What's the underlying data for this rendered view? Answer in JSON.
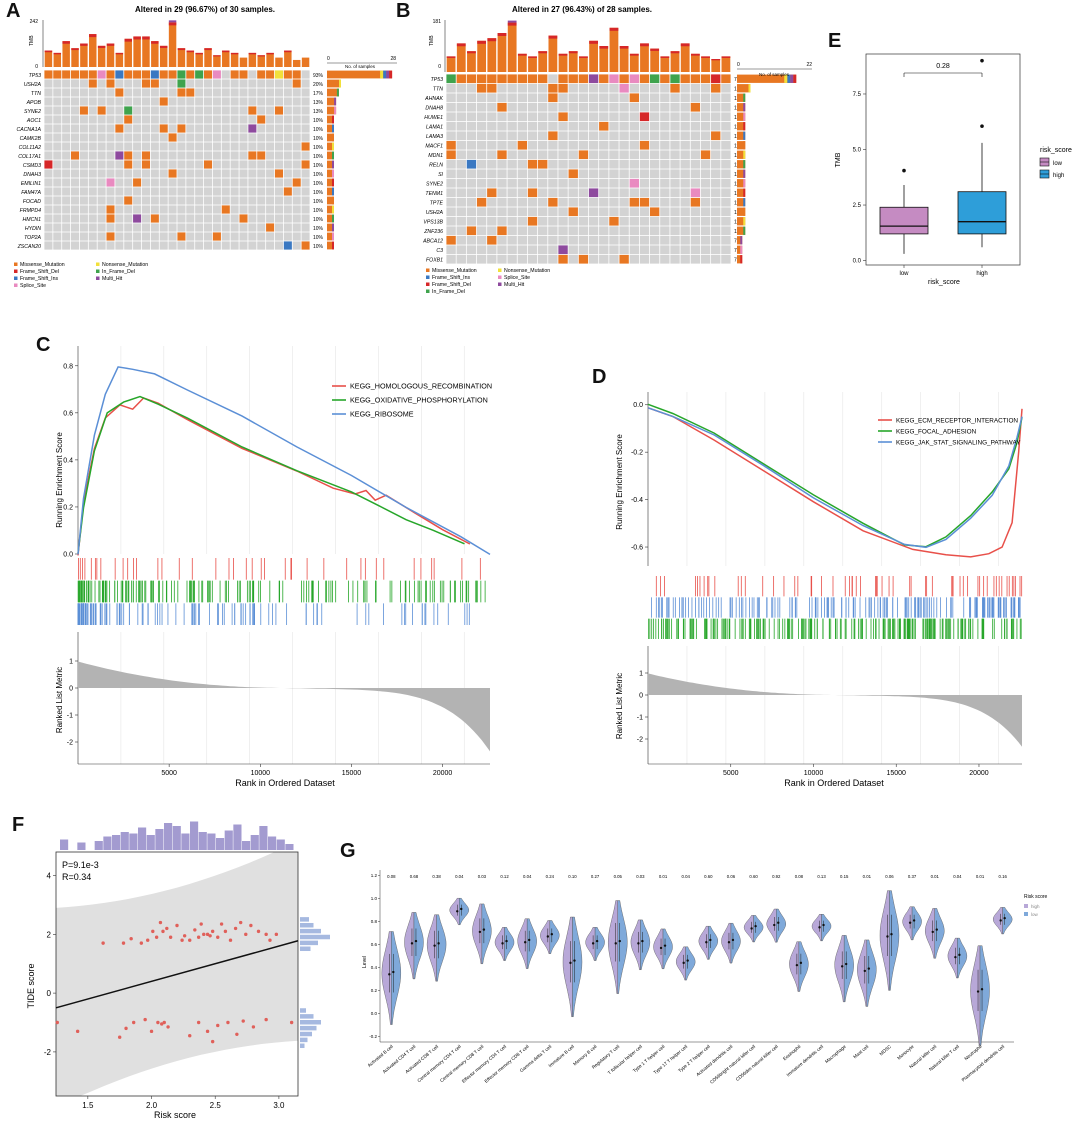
{
  "panels": {
    "A": "A",
    "B": "B",
    "C": "C",
    "D": "D",
    "E": "E",
    "F": "F",
    "G": "G"
  },
  "colors": {
    "missense": "#E87722",
    "nonsense": "#F2E03A",
    "frameshift_del": "#D62728",
    "inframe_del": "#3FA34D",
    "frameshift_ins": "#3A78C2",
    "multi_hit": "#8E4A9E",
    "splice_site": "#E98AC0",
    "empty": "#D3D3D3",
    "red": "#E8504A",
    "green": "#27A62A",
    "blue": "#5B8FD6",
    "low": "#C58BC2",
    "high": "#2E9ED9"
  },
  "chart_data": [
    {
      "id": "A",
      "type": "heatmap",
      "title": "Altered in 29 (96.67%) of 30 samples.",
      "tmb_axis": {
        "label": "TMB",
        "max": "242",
        "min": "0"
      },
      "samples_axis": {
        "label": "No. of samples",
        "min": "0",
        "max": "28"
      },
      "genes": [
        "TP53",
        "USH2A",
        "TTN",
        "APOB",
        "SYNE2",
        "AOC1",
        "CACNA1A",
        "CAMK2B",
        "COL11A2",
        "COL17A1",
        "CSMD3",
        "DNAH3",
        "EMILIN1",
        "FAM47A",
        "FOCAD",
        "FRMPD4",
        "HMCN1",
        "HYDIN",
        "TOP2A",
        "ZSCAN20"
      ],
      "percents": [
        "93%",
        "20%",
        "17%",
        "13%",
        "13%",
        "10%",
        "10%",
        "10%",
        "10%",
        "10%",
        "10%",
        "10%",
        "10%",
        "10%",
        "10%",
        "10%",
        "10%",
        "10%",
        "10%",
        "10%"
      ],
      "legend": [
        "Missense_Mutation",
        "Nonsense_Mutation",
        "Frame_Shift_Del",
        "In_Frame_Del",
        "Frame_Shift_Ins",
        "Multi_Hit",
        "Splice_Site"
      ]
    },
    {
      "id": "B",
      "type": "heatmap",
      "title": "Altered in 27 (96.43%) of 28 samples.",
      "tmb_axis": {
        "label": "TMB",
        "max": "181",
        "min": "0"
      },
      "samples_axis": {
        "label": "No. of samples",
        "min": "0",
        "max": "22"
      },
      "genes": [
        "TP53",
        "TTN",
        "AHNAK",
        "DNAH8",
        "HUWE1",
        "LAMA1",
        "LAMA3",
        "MACF1",
        "MDN1",
        "RELN",
        "SI",
        "SYNE2",
        "TENM1",
        "TPTE",
        "USH2A",
        "VPS13B",
        "ZNF236",
        "ABCA12",
        "C3",
        "FOXB1"
      ],
      "percents": [
        "79%",
        "18%",
        "11%",
        "11%",
        "11%",
        "11%",
        "11%",
        "11%",
        "11%",
        "11%",
        "11%",
        "11%",
        "11%",
        "11%",
        "11%",
        "11%",
        "11%",
        "7%",
        "7%",
        "7%"
      ],
      "legend": [
        "Missense_Mutation",
        "Nonsense_Mutation",
        "Frame_Shift_Ins",
        "Splice_Site",
        "Frame_Shift_Del",
        "Multi_Hit",
        "In_Frame_Del"
      ]
    },
    {
      "id": "C",
      "type": "line",
      "ylabel": "Running Enrichment Score",
      "ylabel2": "Ranked List Metric",
      "xlabel": "Rank in Ordered Dataset",
      "x_ticks": [
        "5000",
        "10000",
        "15000",
        "20000"
      ],
      "y_ticks": [
        "0.0",
        "0.2",
        "0.4",
        "0.6",
        "0.8"
      ],
      "y2_ticks": [
        "1",
        "0",
        "-1",
        "-2"
      ],
      "series": [
        {
          "name": "KEGG_HOMOLOGOUS_RECOMBINATION",
          "color": "#E8504A"
        },
        {
          "name": "KEGG_OXIDATIVE_PHOSPHORYLATION",
          "color": "#27A62A"
        },
        {
          "name": "KEGG_RIBOSOME",
          "color": "#5B8FD6"
        }
      ]
    },
    {
      "id": "D",
      "type": "line",
      "ylabel": "Running Enrichment Score",
      "ylabel2": "Ranked List Metric",
      "xlabel": "Rank in Ordered Dataset",
      "x_ticks": [
        "5000",
        "10000",
        "15000",
        "20000"
      ],
      "y_ticks": [
        "0.0",
        "-0.2",
        "-0.4",
        "-0.6"
      ],
      "y2_ticks": [
        "1",
        "0",
        "-1",
        "-2"
      ],
      "series": [
        {
          "name": "KEGG_ECM_RECEPTOR_INTERACTION",
          "color": "#E8504A"
        },
        {
          "name": "KEGG_FOCAL_ADHESION",
          "color": "#27A62A"
        },
        {
          "name": "KEGG_JAK_STAT_SIGNALING_PATHWAY",
          "color": "#5B8FD6"
        }
      ]
    },
    {
      "id": "E",
      "type": "bar",
      "ylabel": "TMB",
      "xlabel": "risk_score",
      "legend_title": "risk_score",
      "categories": [
        "low",
        "high"
      ],
      "pvalue": "0.28",
      "y_ticks": [
        "0.0",
        "2.5",
        "5.0",
        "7.5"
      ],
      "boxes": [
        {
          "name": "low",
          "min": 0.3,
          "q1": 1.2,
          "median": 1.55,
          "q3": 2.4,
          "max": 3.4,
          "outliers": [
            4.05
          ]
        },
        {
          "name": "high",
          "min": 0.6,
          "q1": 1.2,
          "median": 1.75,
          "q3": 3.1,
          "max": 5.3,
          "outliers": [
            6.05,
            9.0
          ]
        }
      ]
    },
    {
      "id": "F",
      "type": "scatter",
      "xlabel": "Risk score",
      "ylabel": "TIDE score",
      "annotation_p": "P=9.1e-3",
      "annotation_r": "R=0.34",
      "x_ticks": [
        "1.5",
        "2.0",
        "2.5",
        "3.0"
      ],
      "y_ticks": [
        "4",
        "2",
        "0",
        "-2"
      ],
      "xlim": [
        1.25,
        3.15
      ],
      "ylim": [
        -3.5,
        4.8
      ],
      "fit": {
        "intercept": -2.0,
        "slope": 1.2
      },
      "points": [
        [
          1.62,
          1.7
        ],
        [
          1.78,
          1.7
        ],
        [
          1.84,
          1.85
        ],
        [
          1.92,
          1.7
        ],
        [
          1.97,
          1.8
        ],
        [
          2.01,
          2.1
        ],
        [
          2.04,
          1.9
        ],
        [
          2.07,
          2.4
        ],
        [
          2.09,
          2.1
        ],
        [
          2.12,
          2.2
        ],
        [
          2.15,
          1.9
        ],
        [
          2.2,
          2.3
        ],
        [
          2.24,
          1.8
        ],
        [
          2.26,
          1.95
        ],
        [
          2.3,
          1.8
        ],
        [
          2.34,
          2.15
        ],
        [
          2.37,
          1.9
        ],
        [
          2.39,
          2.35
        ],
        [
          2.41,
          2.0
        ],
        [
          2.44,
          2.0
        ],
        [
          2.46,
          1.95
        ],
        [
          2.48,
          2.1
        ],
        [
          2.52,
          1.9
        ],
        [
          2.55,
          2.35
        ],
        [
          2.58,
          2.1
        ],
        [
          2.62,
          1.8
        ],
        [
          2.66,
          2.2
        ],
        [
          2.7,
          2.4
        ],
        [
          2.74,
          2.0
        ],
        [
          2.78,
          2.3
        ],
        [
          2.84,
          2.1
        ],
        [
          2.9,
          2.0
        ],
        [
          2.93,
          1.8
        ],
        [
          1.42,
          -1.3
        ],
        [
          1.75,
          -1.5
        ],
        [
          1.8,
          -1.2
        ],
        [
          1.86,
          -1.0
        ],
        [
          1.95,
          -0.9
        ],
        [
          2.0,
          -1.3
        ],
        [
          2.05,
          -1.0
        ],
        [
          2.08,
          -1.05
        ],
        [
          2.1,
          -1.0
        ],
        [
          2.13,
          -1.15
        ],
        [
          2.3,
          -1.45
        ],
        [
          2.37,
          -1.0
        ],
        [
          2.44,
          -1.3
        ],
        [
          2.48,
          -1.65
        ],
        [
          2.52,
          -1.1
        ],
        [
          2.6,
          -1.0
        ],
        [
          2.67,
          -1.4
        ],
        [
          2.72,
          -0.95
        ],
        [
          2.8,
          -1.15
        ],
        [
          2.9,
          -0.9
        ],
        [
          1.26,
          -1.0
        ],
        [
          3.1,
          -1.0
        ],
        [
          2.98,
          2.0
        ]
      ]
    },
    {
      "id": "G",
      "type": "bar",
      "ylabel": "Level",
      "legend_title": "Risk score",
      "legend": [
        "high",
        "low"
      ],
      "y_ticks": [
        "1.2",
        "1.0",
        "0.8",
        "0.6",
        "0.4",
        "0.2",
        "0.0",
        "-0.2"
      ],
      "categories": [
        "Activated B cell",
        "Activated CD4 T cell",
        "Activated CD8 T cell",
        "Central memory CD4 T cell",
        "Central memory CD8 T cell",
        "Effector memory CD4 T cell",
        "Effector memory CD8 T cell",
        "Gamma delta T cell",
        "Immature B cell",
        "Memory B cell",
        "Regulatory T cell",
        "T follicular helper cell",
        "Type 1 T helper cell",
        "Type 17 T helper cell",
        "Type 2 T helper cell",
        "Activated dendritic cell",
        "CD56bright natural killer cell",
        "CD56dim natural killer cell",
        "Eosinophil",
        "Immature dendritic cell",
        "Macrophage",
        "Mast cell",
        "MDSC",
        "Monocyte",
        "Natural killer cell",
        "Natural killer T cell",
        "Neutrophil",
        "Plasmacytoid dendritic cell"
      ],
      "pvalues": [
        "0.08",
        "0.68",
        "0.38",
        "0.04",
        "0.03",
        "0.12",
        "0.04",
        "0.24",
        "0.10",
        "0.27",
        "0.05",
        "0.03",
        "0.01",
        "0.04",
        "0.60",
        "0.06",
        "0.60",
        "0.92",
        "0.08",
        "0.13",
        "0.15",
        "0.01",
        "0.06",
        "0.37",
        "0.01",
        "0.04",
        "0.01",
        "0.16"
      ],
      "medians": [
        0.35,
        0.62,
        0.6,
        0.9,
        0.72,
        0.62,
        0.63,
        0.68,
        0.45,
        0.62,
        0.62,
        0.62,
        0.58,
        0.45,
        0.63,
        0.63,
        0.75,
        0.78,
        0.43,
        0.76,
        0.42,
        0.38,
        0.68,
        0.8,
        0.72,
        0.5,
        0.2,
        0.82
      ],
      "spreads": [
        0.28,
        0.2,
        0.2,
        0.08,
        0.18,
        0.1,
        0.15,
        0.1,
        0.3,
        0.1,
        0.28,
        0.15,
        0.12,
        0.1,
        0.1,
        0.12,
        0.08,
        0.1,
        0.15,
        0.08,
        0.2,
        0.2,
        0.3,
        0.1,
        0.15,
        0.12,
        0.3,
        0.08
      ]
    }
  ]
}
